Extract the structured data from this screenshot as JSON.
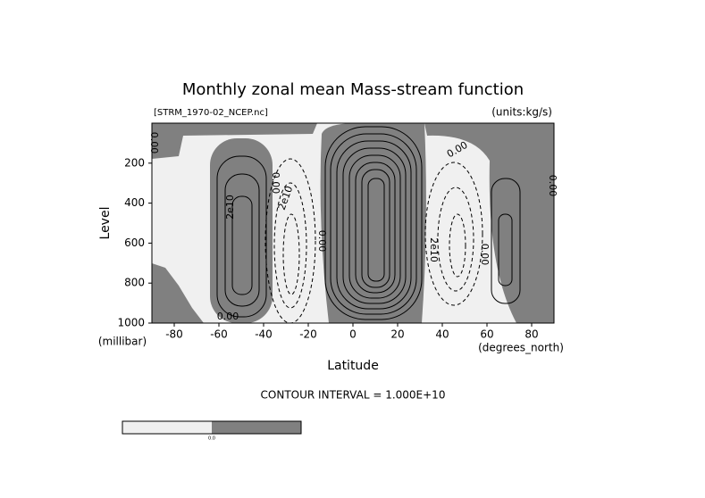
{
  "chart_data": {
    "type": "contour",
    "title": "Monthly zonal mean Mass-stream function",
    "subtitle_left": "[STRM_1970-02_NCEP.nc]",
    "subtitle_right": "(units:kg/s)",
    "x_label": "Latitude",
    "x_unit": "(degrees_north)",
    "y_label": "Level",
    "y_unit": "(millibar)",
    "xlim": [
      -90,
      90
    ],
    "xticks": [
      -80,
      -60,
      -40,
      -20,
      0,
      20,
      40,
      60,
      80
    ],
    "ylim": [
      1000,
      0
    ],
    "yticks": [
      200,
      400,
      600,
      800,
      1000
    ],
    "annotation": "CONTOUR INTERVAL = 1.000E+10",
    "contour_labels": [
      "0.00",
      "2e10",
      "0.00",
      "2e10",
      "0.00",
      "2e10",
      "0.00",
      "0.00",
      "0.00",
      "0.00"
    ],
    "colors": {
      "negative": "#f0f0f0",
      "positive": "#808080"
    },
    "colorbar_labels": [
      "0.0"
    ]
  }
}
